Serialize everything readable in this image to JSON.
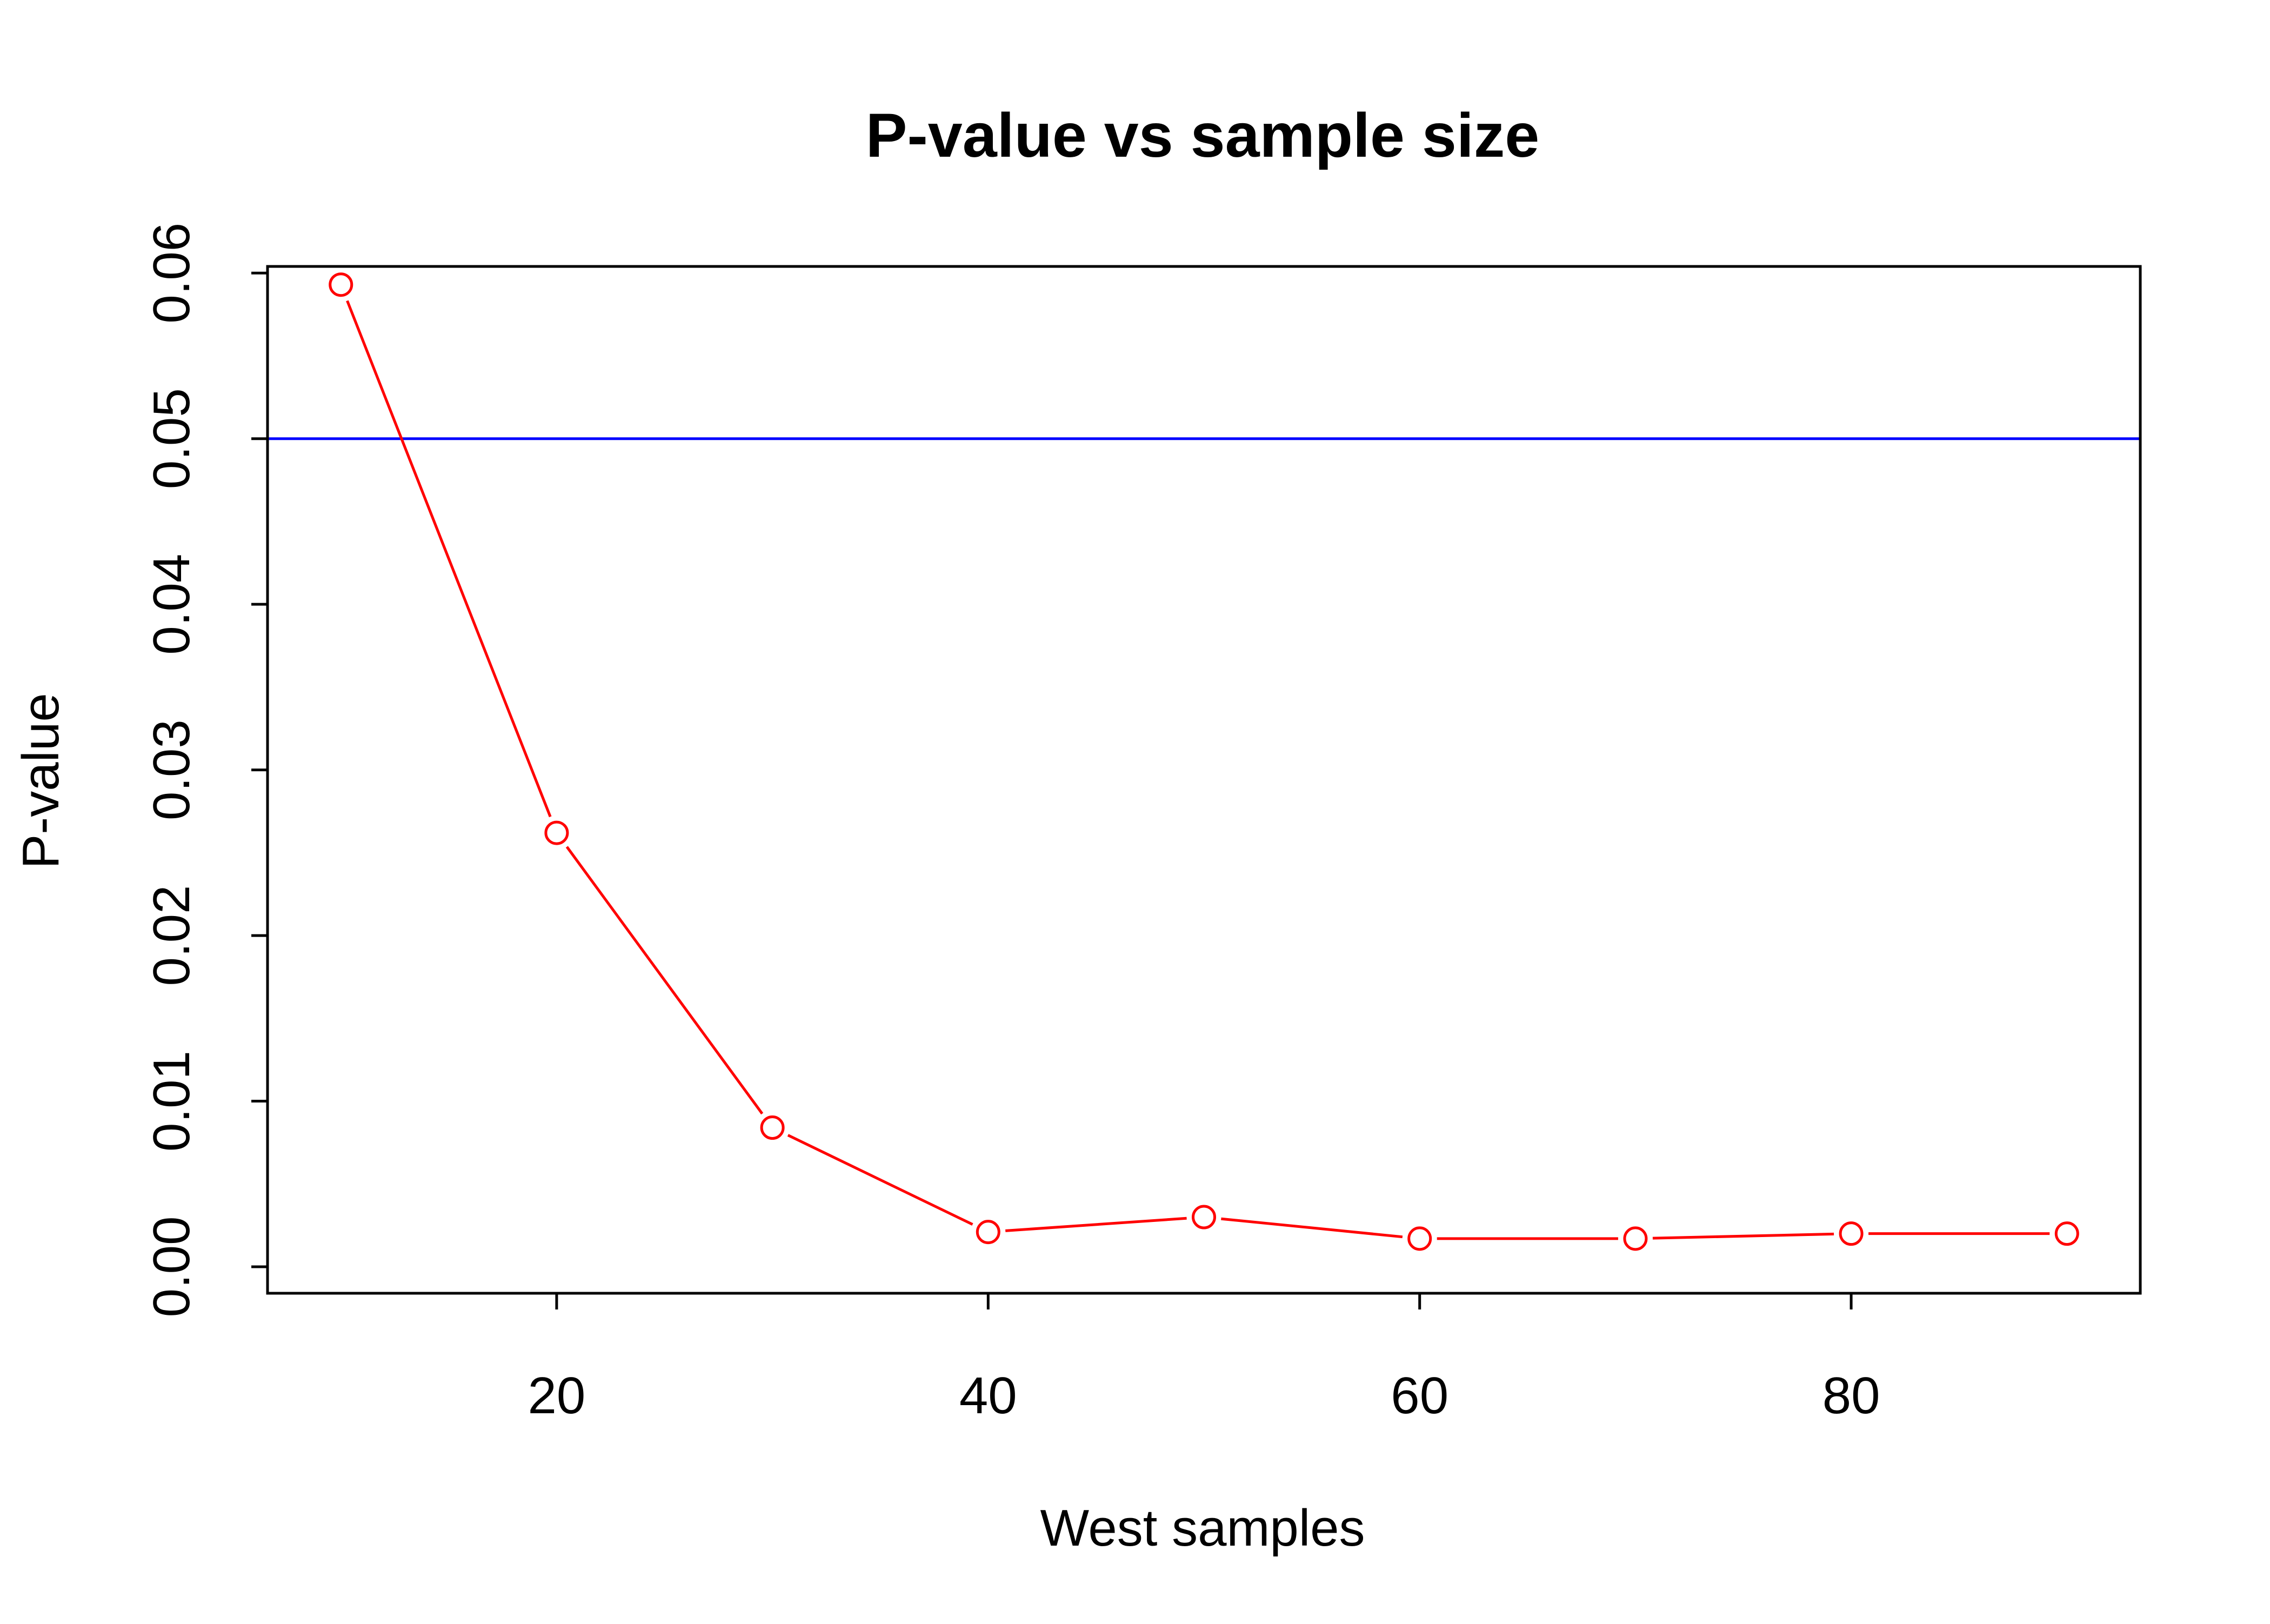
{
  "chart_data": {
    "type": "line",
    "title": "P-value vs sample size",
    "xlabel": "West samples",
    "ylabel": "P-value",
    "xlim": [
      6.6,
      93.4
    ],
    "ylim": [
      -0.0016,
      0.0604
    ],
    "x_ticks": [
      20,
      40,
      60,
      80
    ],
    "y_ticks": [
      0.0,
      0.01,
      0.02,
      0.03,
      0.04,
      0.05,
      0.06
    ],
    "x_tick_labels": [
      "20",
      "40",
      "60",
      "80"
    ],
    "y_tick_labels": [
      "0.00",
      "0.01",
      "0.02",
      "0.03",
      "0.04",
      "0.05",
      "0.06"
    ],
    "grid": false,
    "series": [
      {
        "color": "#ff0000",
        "marker": "open-circle",
        "x": [
          10,
          20,
          30,
          40,
          50,
          60,
          70,
          80,
          90
        ],
        "y": [
          0.0593,
          0.0262,
          0.0084,
          0.0021,
          0.003,
          0.0017,
          0.0017,
          0.002,
          0.002
        ]
      }
    ],
    "reference_lines": [
      {
        "orientation": "horizontal",
        "y": 0.05,
        "color": "#0000ff"
      }
    ]
  }
}
